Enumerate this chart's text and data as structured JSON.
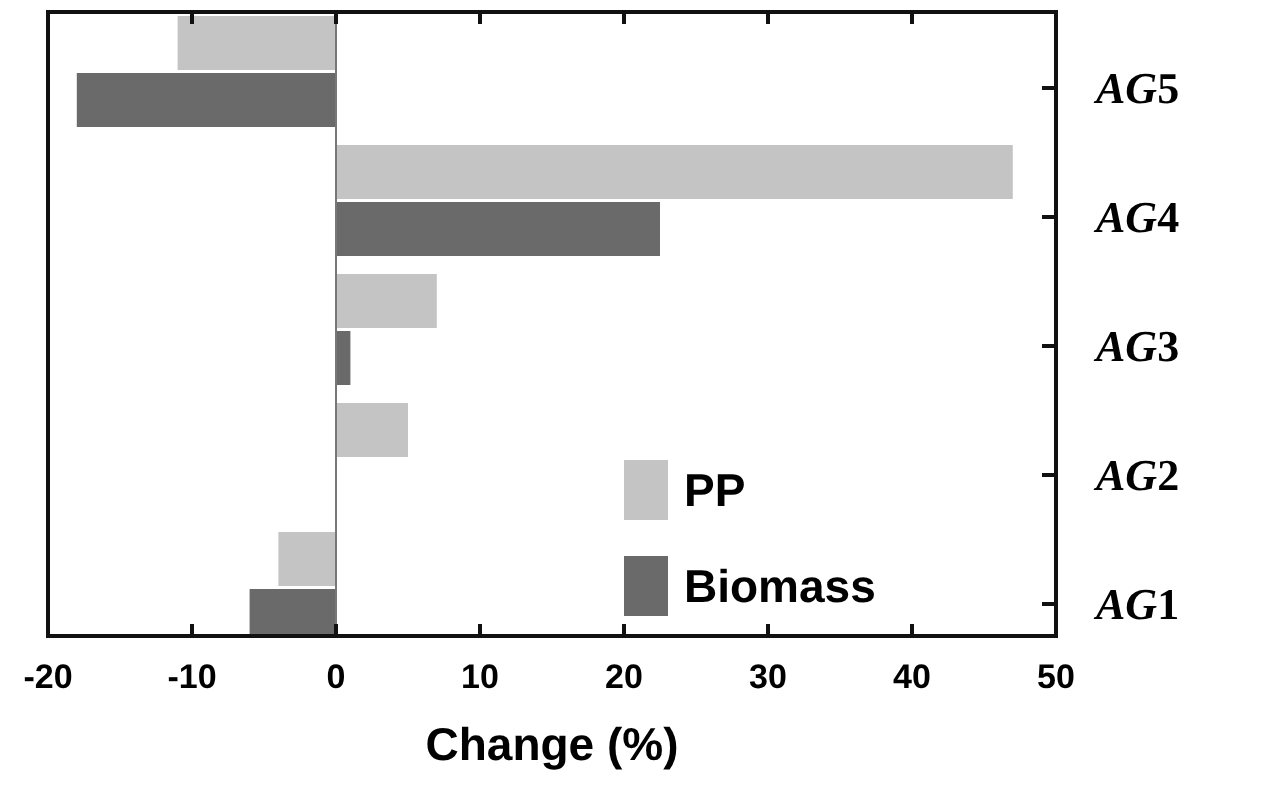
{
  "chart_data": {
    "type": "bar",
    "orientation": "horizontal",
    "xlabel": "Change (%)",
    "categories": [
      "AG5",
      "AG4",
      "AG3",
      "AG2",
      "AG1"
    ],
    "series": [
      {
        "name": "PP",
        "color": "#c4c4c4",
        "values": [
          -11,
          47,
          7,
          5,
          -4
        ]
      },
      {
        "name": "Biomass",
        "color": "#6a6a6a",
        "values": [
          -18,
          22.5,
          1,
          0,
          -6
        ]
      }
    ],
    "xlim": [
      -20,
      50
    ],
    "xticks": [
      -20,
      -10,
      0,
      10,
      20,
      30,
      40,
      50
    ],
    "legend": "bottom right",
    "ref_lines": [
      {
        "axis": "x",
        "value": 0,
        "color": "#777777"
      }
    ]
  }
}
